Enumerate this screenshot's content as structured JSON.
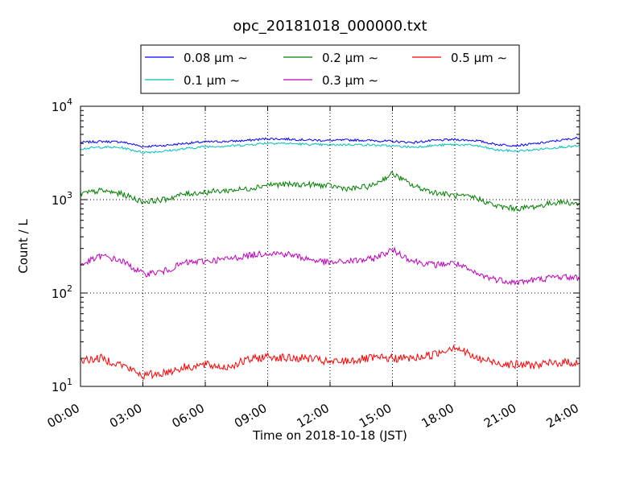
{
  "chart_data": {
    "type": "line",
    "title": "opc_20181018_000000.txt",
    "xlabel": "Time on 2018-10-18 (JST)",
    "ylabel": "Count / L",
    "yscale": "log",
    "ylim": [
      10,
      10000
    ],
    "xlim_hours": [
      0,
      24
    ],
    "x_ticks": [
      "00:00",
      "03:00",
      "06:00",
      "09:00",
      "12:00",
      "15:00",
      "18:00",
      "21:00",
      "24:00"
    ],
    "y_ticks": [
      {
        "base": "10",
        "exp": "1"
      },
      {
        "base": "10",
        "exp": "2"
      },
      {
        "base": "10",
        "exp": "3"
      },
      {
        "base": "10",
        "exp": "4"
      }
    ],
    "grid": true,
    "legend": {
      "position": "above-plot"
    },
    "series": [
      {
        "name": "0.08 μm ∼",
        "color": "#0000ff",
        "x": [
          0,
          1,
          2,
          3,
          4,
          5,
          6,
          7,
          8,
          9,
          10,
          11,
          12,
          13,
          14,
          15,
          16,
          17,
          18,
          19,
          20,
          21,
          22,
          23,
          24
        ],
        "values": [
          4100,
          4200,
          4150,
          3700,
          3800,
          4000,
          4150,
          4200,
          4300,
          4500,
          4450,
          4350,
          4300,
          4350,
          4300,
          4200,
          4100,
          4300,
          4400,
          4300,
          3900,
          3800,
          4000,
          4300,
          4600
        ]
      },
      {
        "name": "0.1 μm ∼",
        "color": "#00bfbf",
        "x": [
          0,
          1,
          2,
          3,
          4,
          5,
          6,
          7,
          8,
          9,
          10,
          11,
          12,
          13,
          14,
          15,
          16,
          17,
          18,
          19,
          20,
          21,
          22,
          23,
          24
        ],
        "values": [
          3500,
          3650,
          3600,
          3200,
          3300,
          3500,
          3700,
          3750,
          3850,
          4050,
          4000,
          3900,
          3850,
          3900,
          3850,
          3750,
          3650,
          3800,
          3900,
          3800,
          3400,
          3300,
          3450,
          3650,
          3750
        ]
      },
      {
        "name": "0.2 μm ∼",
        "color": "#008000",
        "x": [
          0,
          1,
          2,
          3,
          4,
          5,
          6,
          7,
          8,
          9,
          10,
          11,
          12,
          13,
          14,
          15,
          16,
          17,
          18,
          19,
          20,
          21,
          22,
          23,
          24
        ],
        "values": [
          1150,
          1250,
          1150,
          950,
          1000,
          1150,
          1200,
          1250,
          1300,
          1450,
          1450,
          1450,
          1400,
          1300,
          1400,
          1900,
          1400,
          1200,
          1100,
          1050,
          850,
          800,
          850,
          950,
          900
        ]
      },
      {
        "name": "0.3 μm ∼",
        "color": "#bf00bf",
        "x": [
          0,
          1,
          2,
          3,
          4,
          5,
          6,
          7,
          8,
          9,
          10,
          11,
          12,
          13,
          14,
          15,
          16,
          17,
          18,
          19,
          20,
          21,
          22,
          23,
          24
        ],
        "values": [
          200,
          250,
          220,
          160,
          170,
          210,
          220,
          230,
          250,
          270,
          260,
          230,
          210,
          220,
          230,
          290,
          220,
          200,
          210,
          160,
          140,
          130,
          140,
          150,
          145
        ]
      },
      {
        "name": "0.5 μm ∼",
        "color": "#ff0000",
        "x": [
          0,
          1,
          2,
          3,
          4,
          5,
          6,
          7,
          8,
          9,
          10,
          11,
          12,
          13,
          14,
          15,
          16,
          17,
          18,
          19,
          20,
          21,
          22,
          23,
          24
        ],
        "values": [
          19,
          20,
          17,
          13,
          14,
          16,
          17,
          16,
          19,
          21,
          20,
          20,
          18,
          19,
          20,
          20,
          20,
          22,
          27,
          20,
          18,
          17,
          17,
          18,
          18
        ]
      }
    ]
  }
}
